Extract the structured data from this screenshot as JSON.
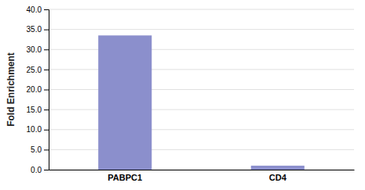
{
  "chart_data": {
    "type": "bar",
    "categories": [
      "PABPC1",
      "CD4"
    ],
    "values": [
      33.5,
      1.0
    ],
    "color": "#8b8fcc",
    "ylabel": "Fold Enrichment",
    "ylim": [
      0,
      40
    ],
    "yticks": [
      {
        "value": 0,
        "label": "0.0"
      },
      {
        "value": 5,
        "label": "5.0"
      },
      {
        "value": 10,
        "label": "10.0"
      },
      {
        "value": 15,
        "label": "15.0"
      },
      {
        "value": 20,
        "label": "20.0"
      },
      {
        "value": 25,
        "label": "25.0"
      },
      {
        "value": 30,
        "label": "30.0"
      },
      {
        "value": 35,
        "label": "35.0"
      },
      {
        "value": 40,
        "label": "40.0"
      }
    ],
    "grid": true
  }
}
